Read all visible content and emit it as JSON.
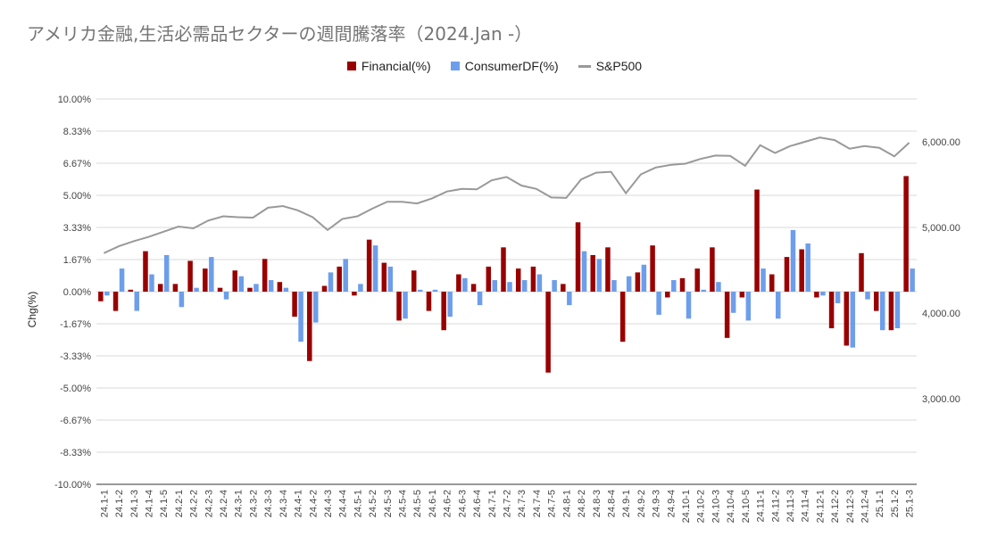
{
  "chart_data": {
    "type": "bar",
    "title": "アメリカ金融,生活必需品セクターの週間騰落率（2024.Jan -）",
    "ylabel": "Chg(%)",
    "legend_position": "top",
    "grid": true,
    "ylim": [
      -10,
      10
    ],
    "y_ticks": [
      "10.00%",
      "8.33%",
      "6.67%",
      "5.00%",
      "3.33%",
      "1.67%",
      "0.00%",
      "-1.67%",
      "-3.33%",
      "-5.00%",
      "-6.67%",
      "-8.33%",
      "-10.00%"
    ],
    "y2lim": [
      2000,
      6500
    ],
    "y2_ticks": [
      "6,000.00",
      "5,000.00",
      "4,000.00",
      "3,000.00"
    ],
    "categories": [
      "24.1-1",
      "24.1-2",
      "24.1-3",
      "24.1-4",
      "24.1-5",
      "24.2-1",
      "24.2-2",
      "24.2-3",
      "24.2-4",
      "24.3-1",
      "24.3-2",
      "24.3-3",
      "24.3-4",
      "24.4-1",
      "24.4-2",
      "24.4-3",
      "24.4-4",
      "24.5-1",
      "24.5-2",
      "24.5-3",
      "24.5-4",
      "24.5-5",
      "24.6-1",
      "24.6-2",
      "24.6-3",
      "24.6-4",
      "24.7-1",
      "24.7-2",
      "24.7-3",
      "24.7-4",
      "24.7-5",
      "24.8-1",
      "24.8-2",
      "24.8-3",
      "24.8-4",
      "24.9-1",
      "24.9-2",
      "24.9-3",
      "24.9-4",
      "24.10-1",
      "24.10-2",
      "24.10-3",
      "24.10-4",
      "24.10-5",
      "24.11-1",
      "24.11-2",
      "24.11-3",
      "24.11-4",
      "24.12-1",
      "24.12-2",
      "24.12-3",
      "24.12-4",
      "25.1-1",
      "25.1-2",
      "25.1-3"
    ],
    "series": [
      {
        "name": "Financial(%)",
        "type": "bar",
        "axis": "left",
        "color": "#990000",
        "values": [
          -0.5,
          -1.0,
          0.1,
          2.1,
          0.4,
          0.4,
          1.6,
          1.2,
          0.2,
          1.1,
          0.2,
          1.7,
          0.5,
          -1.3,
          -3.6,
          0.3,
          1.3,
          -0.2,
          2.7,
          1.5,
          -1.5,
          1.1,
          -1.0,
          -2.0,
          0.9,
          0.4,
          1.3,
          2.3,
          1.2,
          1.3,
          -4.2,
          0.4,
          3.6,
          1.9,
          2.3,
          -2.6,
          1.0,
          2.4,
          -0.3,
          0.7,
          1.2,
          2.3,
          -2.4,
          -0.3,
          5.3,
          0.9,
          1.8,
          2.2,
          -0.3,
          -1.9,
          -2.8,
          2.0,
          -1.0,
          -2.0,
          6.0
        ]
      },
      {
        "name": "ConsumerDF(%)",
        "type": "bar",
        "axis": "left",
        "color": "#6d9eeb",
        "values": [
          -0.2,
          1.2,
          -1.0,
          0.9,
          1.9,
          -0.8,
          0.2,
          1.8,
          -0.4,
          0.8,
          0.4,
          0.6,
          0.2,
          -2.6,
          -1.6,
          1.0,
          1.7,
          0.4,
          2.4,
          1.3,
          -1.4,
          0.1,
          0.1,
          -1.3,
          0.7,
          -0.7,
          0.6,
          0.5,
          0.6,
          0.9,
          0.6,
          -0.7,
          2.1,
          1.7,
          0.6,
          0.8,
          1.4,
          -1.2,
          0.6,
          -1.4,
          0.1,
          0.5,
          -1.1,
          -1.5,
          1.2,
          -1.4,
          3.2,
          2.5,
          -0.2,
          -0.6,
          -2.9,
          -0.4,
          -2.0,
          -1.9,
          1.2
        ]
      },
      {
        "name": "S&P500",
        "type": "line",
        "axis": "right",
        "color": "#999999",
        "values": [
          4700,
          4780,
          4840,
          4890,
          4950,
          5010,
          4990,
          5080,
          5130,
          5120,
          5115,
          5230,
          5250,
          5200,
          5120,
          4970,
          5100,
          5130,
          5220,
          5300,
          5300,
          5280,
          5340,
          5420,
          5450,
          5445,
          5550,
          5590,
          5490,
          5450,
          5350,
          5345,
          5560,
          5640,
          5650,
          5400,
          5620,
          5700,
          5730,
          5745,
          5800,
          5840,
          5835,
          5720,
          5960,
          5870,
          5950,
          6000,
          6050,
          6020,
          5920,
          5950,
          5930,
          5830,
          5990
        ]
      }
    ]
  }
}
